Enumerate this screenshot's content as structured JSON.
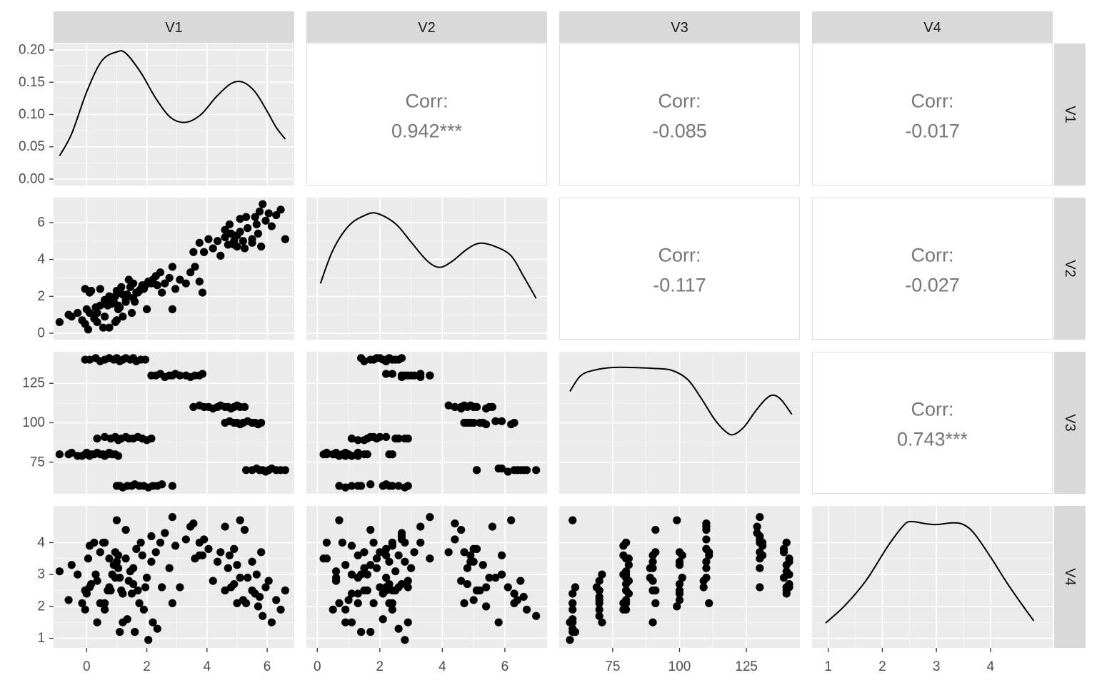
{
  "chart_data": {
    "type": "scatter-matrix",
    "variables": [
      "V1",
      "V2",
      "V3",
      "V4"
    ],
    "colors": {
      "panel_bg": "#ebebeb",
      "grid_major": "#ffffff",
      "strip_bg": "#d9d9d9",
      "point": "#000000",
      "corr_text": "#767676",
      "axis_text": "#4d4d4d"
    },
    "axes": {
      "V1": {
        "lim": [
          -1.1,
          6.9
        ],
        "ticks": [
          0,
          2,
          4,
          6
        ],
        "tick_labels": [
          "0",
          "2",
          "4",
          "6"
        ]
      },
      "V2": {
        "lim": [
          -0.35,
          7.35
        ],
        "ticks": [
          0,
          2,
          4,
          6
        ],
        "tick_labels": [
          "0",
          "2",
          "4",
          "6"
        ]
      },
      "V3": {
        "lim": [
          55,
          145
        ],
        "ticks": [
          75,
          100,
          125
        ],
        "tick_labels": [
          "75",
          "100",
          "125"
        ]
      },
      "V4": {
        "lim": [
          0.7,
          5.15
        ],
        "ticks": [
          1,
          2,
          3,
          4
        ],
        "tick_labels": [
          "1",
          "2",
          "3",
          "4"
        ]
      }
    },
    "density_y": {
      "lim": [
        -0.01,
        0.21
      ],
      "ticks": [
        0,
        0.05,
        0.1,
        0.15,
        0.2
      ],
      "tick_labels": [
        "0.00",
        "0.05",
        "0.10",
        "0.15",
        "0.20"
      ]
    },
    "densities": {
      "V1": [
        [
          -0.9,
          0.036
        ],
        [
          -0.5,
          0.07
        ],
        [
          0,
          0.135
        ],
        [
          0.5,
          0.183
        ],
        [
          1.0,
          0.197
        ],
        [
          1.3,
          0.195
        ],
        [
          1.8,
          0.165
        ],
        [
          2.3,
          0.125
        ],
        [
          2.8,
          0.095
        ],
        [
          3.3,
          0.088
        ],
        [
          3.8,
          0.1
        ],
        [
          4.3,
          0.127
        ],
        [
          4.8,
          0.148
        ],
        [
          5.2,
          0.15
        ],
        [
          5.6,
          0.135
        ],
        [
          6.0,
          0.105
        ],
        [
          6.3,
          0.08
        ],
        [
          6.6,
          0.062
        ]
      ],
      "V2": [
        [
          0.1,
          0.044
        ],
        [
          0.5,
          0.073
        ],
        [
          1.0,
          0.094
        ],
        [
          1.5,
          0.103
        ],
        [
          1.9,
          0.105
        ],
        [
          2.5,
          0.096
        ],
        [
          3.0,
          0.08
        ],
        [
          3.5,
          0.064
        ],
        [
          3.9,
          0.058
        ],
        [
          4.3,
          0.063
        ],
        [
          4.8,
          0.074
        ],
        [
          5.2,
          0.079
        ],
        [
          5.7,
          0.076
        ],
        [
          6.2,
          0.068
        ],
        [
          6.6,
          0.05
        ],
        [
          7.0,
          0.031
        ]
      ],
      "V3": [
        [
          59,
          0.0105
        ],
        [
          63,
          0.0122
        ],
        [
          68,
          0.0128
        ],
        [
          75,
          0.0131
        ],
        [
          82,
          0.0131
        ],
        [
          90,
          0.013
        ],
        [
          97,
          0.0128
        ],
        [
          103,
          0.0118
        ],
        [
          108,
          0.0098
        ],
        [
          113,
          0.0075
        ],
        [
          117,
          0.0062
        ],
        [
          120,
          0.0058
        ],
        [
          124,
          0.0066
        ],
        [
          128,
          0.0082
        ],
        [
          132,
          0.0096
        ],
        [
          135,
          0.0101
        ],
        [
          138,
          0.0096
        ],
        [
          142,
          0.008
        ]
      ],
      "V4": [
        [
          0.95,
          0.045
        ],
        [
          1.3,
          0.085
        ],
        [
          1.7,
          0.145
        ],
        [
          2.1,
          0.225
        ],
        [
          2.4,
          0.275
        ],
        [
          2.55,
          0.283
        ],
        [
          2.8,
          0.278
        ],
        [
          3.0,
          0.276
        ],
        [
          3.3,
          0.28
        ],
        [
          3.5,
          0.276
        ],
        [
          3.7,
          0.255
        ],
        [
          4.0,
          0.2
        ],
        [
          4.3,
          0.14
        ],
        [
          4.6,
          0.085
        ],
        [
          4.8,
          0.05
        ]
      ]
    },
    "correlations": [
      {
        "row": "V1",
        "col": "V2",
        "label": "Corr:",
        "value": "0.942***"
      },
      {
        "row": "V1",
        "col": "V3",
        "label": "Corr:",
        "value": "-0.085"
      },
      {
        "row": "V1",
        "col": "V4",
        "label": "Corr:",
        "value": "-0.017"
      },
      {
        "row": "V2",
        "col": "V3",
        "label": "Corr:",
        "value": "-0.117"
      },
      {
        "row": "V2",
        "col": "V4",
        "label": "Corr:",
        "value": "-0.027"
      },
      {
        "row": "V3",
        "col": "V4",
        "label": "Corr:",
        "value": "0.743***"
      }
    ],
    "observations": [
      [
        -0.9,
        0.6,
        80,
        3.1
      ],
      [
        -0.6,
        1.0,
        80,
        2.2
      ],
      [
        -0.5,
        0.9,
        81,
        3.3
      ],
      [
        -0.3,
        1.1,
        79,
        3.0
      ],
      [
        -0.15,
        0.7,
        79,
        2.1
      ],
      [
        -0.05,
        0.5,
        80,
        1.9
      ],
      [
        0.0,
        1.3,
        81,
        2.4
      ],
      [
        0.05,
        0.2,
        80,
        3.5
      ],
      [
        0.1,
        1.1,
        79,
        3.9
      ],
      [
        0.15,
        2.3,
        80,
        2.7
      ],
      [
        0.25,
        0.8,
        80,
        4.0
      ],
      [
        0.35,
        0.6,
        81,
        2.8
      ],
      [
        0.45,
        2.4,
        80,
        2.1
      ],
      [
        0.55,
        0.3,
        80,
        4.0
      ],
      [
        0.6,
        0.9,
        79,
        1.9
      ],
      [
        0.7,
        1.5,
        80,
        2.5
      ],
      [
        0.75,
        0.3,
        81,
        3.5
      ],
      [
        0.85,
        1.6,
        80,
        3.0
      ],
      [
        0.95,
        0.6,
        80,
        2.9
      ],
      [
        1.05,
        1.3,
        79,
        3.6
      ],
      [
        -0.05,
        2.4,
        140,
        2.5
      ],
      [
        0.1,
        2.2,
        140,
        2.6
      ],
      [
        0.3,
        1.4,
        141,
        3.0
      ],
      [
        0.45,
        1.5,
        139,
        3.7
      ],
      [
        0.6,
        1.8,
        140,
        4.0
      ],
      [
        0.75,
        2.0,
        141,
        2.6
      ],
      [
        0.9,
        1.7,
        140,
        3.3
      ],
      [
        1.0,
        2.3,
        141,
        3.4
      ],
      [
        1.1,
        2.2,
        139,
        2.9
      ],
      [
        1.2,
        2.1,
        140,
        2.4
      ],
      [
        1.3,
        1.9,
        141,
        3.5
      ],
      [
        1.45,
        2.5,
        140,
        3.1
      ],
      [
        1.55,
        2.7,
        141,
        2.7
      ],
      [
        1.65,
        2.2,
        139,
        3.8
      ],
      [
        1.8,
        2.4,
        140,
        4.0
      ],
      [
        1.95,
        2.6,
        140,
        2.6
      ],
      [
        0.35,
        1.1,
        90,
        1.5
      ],
      [
        0.6,
        1.8,
        91,
        2.1
      ],
      [
        0.8,
        1.6,
        90,
        2.5
      ],
      [
        0.95,
        2.0,
        91,
        3.7
      ],
      [
        1.05,
        1.5,
        89,
        3.2
      ],
      [
        1.15,
        2.5,
        90,
        2.5
      ],
      [
        1.3,
        1.7,
        91,
        4.4
      ],
      [
        1.4,
        2.9,
        90,
        2.8
      ],
      [
        1.55,
        1.9,
        90,
        3.2
      ],
      [
        1.7,
        2.2,
        91,
        2.5
      ],
      [
        1.85,
        2.6,
        90,
        3.6
      ],
      [
        2.0,
        1.3,
        89,
        2.9
      ],
      [
        2.15,
        2.8,
        90,
        3.4
      ],
      [
        1.0,
        0.7,
        60,
        4.7
      ],
      [
        1.1,
        1.4,
        60,
        1.2
      ],
      [
        1.2,
        0.9,
        59,
        1.5
      ],
      [
        1.35,
        2.1,
        60,
        1.6
      ],
      [
        1.5,
        1.1,
        60,
        2.4
      ],
      [
        1.6,
        1.7,
        61,
        1.2
      ],
      [
        1.75,
        2.3,
        60,
        2.1
      ],
      [
        1.9,
        2.4,
        60,
        1.9
      ],
      [
        2.05,
        2.8,
        59,
        0.95
      ],
      [
        2.2,
        2.9,
        60,
        1.5
      ],
      [
        2.35,
        2.6,
        60,
        1.3
      ],
      [
        2.5,
        2.2,
        61,
        2.6
      ],
      [
        2.85,
        1.3,
        60,
        2.1
      ],
      [
        2.15,
        2.7,
        130,
        4.2
      ],
      [
        2.3,
        3.1,
        130,
        3.7
      ],
      [
        2.45,
        3.3,
        131,
        4.0
      ],
      [
        2.6,
        2.7,
        129,
        4.3
      ],
      [
        2.75,
        3.0,
        130,
        3.2
      ],
      [
        2.85,
        3.6,
        130,
        4.8
      ],
      [
        2.95,
        2.4,
        131,
        3.9
      ],
      [
        3.1,
        2.9,
        130,
        2.6
      ],
      [
        3.3,
        2.7,
        130,
        4.1
      ],
      [
        3.45,
        3.3,
        129,
        4.5
      ],
      [
        3.6,
        3.6,
        130,
        3.5
      ],
      [
        3.75,
        2.8,
        130,
        4.0
      ],
      [
        3.85,
        2.2,
        131,
        3.6
      ],
      [
        3.55,
        4.4,
        110,
        4.6
      ],
      [
        3.75,
        4.9,
        111,
        3.6
      ],
      [
        3.9,
        4.4,
        110,
        4.1
      ],
      [
        4.05,
        5.1,
        110,
        3.8
      ],
      [
        4.2,
        4.6,
        109,
        2.8
      ],
      [
        4.35,
        5.0,
        110,
        3.4
      ],
      [
        4.45,
        4.2,
        111,
        3.7
      ],
      [
        4.6,
        5.6,
        110,
        4.5
      ],
      [
        4.7,
        4.8,
        110,
        3.2
      ],
      [
        4.8,
        5.4,
        109,
        2.6
      ],
      [
        4.9,
        5.0,
        110,
        3.8
      ],
      [
        5.0,
        4.7,
        111,
        2.1
      ],
      [
        5.1,
        5.5,
        110,
        2.9
      ],
      [
        5.25,
        4.6,
        110,
        4.4
      ],
      [
        4.6,
        5.2,
        100,
        2.5
      ],
      [
        4.75,
        5.9,
        101,
        3.6
      ],
      [
        4.9,
        4.8,
        100,
        2.7
      ],
      [
        5.0,
        5.3,
        100,
        3.3
      ],
      [
        5.1,
        6.2,
        99,
        4.7
      ],
      [
        5.2,
        5.0,
        100,
        2.2
      ],
      [
        5.35,
        5.7,
        101,
        2.9
      ],
      [
        5.5,
        4.9,
        100,
        3.4
      ],
      [
        5.6,
        6.3,
        100,
        2.4
      ],
      [
        5.7,
        5.4,
        99,
        2.0
      ],
      [
        5.8,
        4.7,
        100,
        3.7
      ],
      [
        5.3,
        6.3,
        70,
        2.1
      ],
      [
        5.5,
        5.1,
        70,
        2.5
      ],
      [
        5.65,
        5.9,
        71,
        3.0
      ],
      [
        5.75,
        6.6,
        70,
        2.3
      ],
      [
        5.85,
        7.0,
        70,
        1.7
      ],
      [
        5.95,
        6.1,
        69,
        2.6
      ],
      [
        6.05,
        6.5,
        70,
        2.8
      ],
      [
        6.15,
        5.8,
        71,
        1.5
      ],
      [
        6.3,
        6.4,
        70,
        2.2
      ],
      [
        6.45,
        6.7,
        70,
        1.9
      ],
      [
        6.6,
        5.1,
        70,
        2.5
      ]
    ]
  }
}
